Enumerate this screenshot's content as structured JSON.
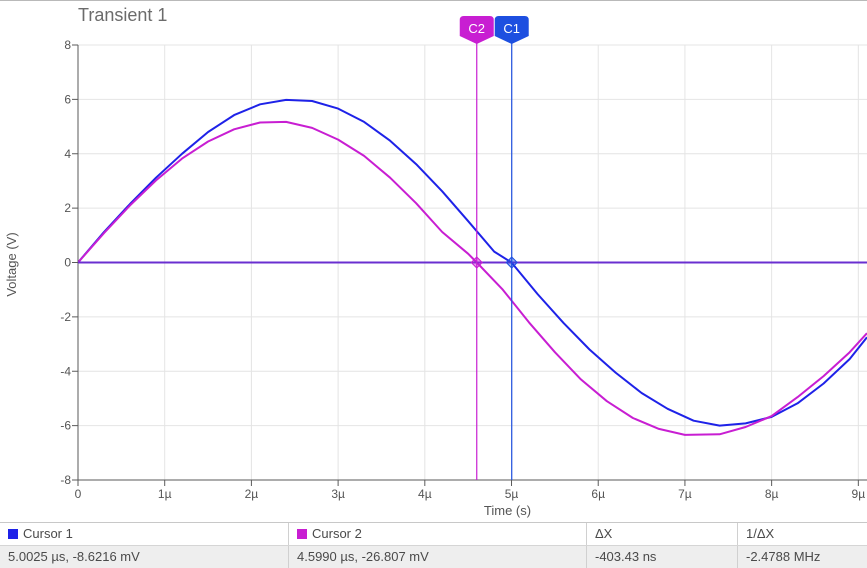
{
  "page": {
    "title": "Transient 1"
  },
  "colors": {
    "series1": "#1e22e8",
    "series2": "#c81ed2",
    "zero_line": "#6a2fd0",
    "grid": "#e4e4e4",
    "axis": "#5a5a5a",
    "cursor_c1_fill": "#1d4fe0",
    "cursor_c2_fill": "#c81ed2"
  },
  "chart_data": {
    "type": "line",
    "xlabel": "Time (s)",
    "ylabel": "Voltage (V)",
    "xlim": [
      0,
      9.1
    ],
    "ylim": [
      -8,
      8
    ],
    "x_unit_note": "microseconds",
    "x_ticks": [
      0,
      1,
      2,
      3,
      4,
      5,
      6,
      7,
      8,
      9
    ],
    "x_tick_labels": [
      "0",
      "1µ",
      "2µ",
      "3µ",
      "4µ",
      "5µ",
      "6µ",
      "7µ",
      "8µ",
      "9µ"
    ],
    "y_ticks": [
      -8,
      -6,
      -4,
      -2,
      0,
      2,
      4,
      6,
      8
    ],
    "y_tick_labels": [
      "-8",
      "-6",
      "-4",
      "-2",
      "0",
      "2",
      "4",
      "6",
      "8"
    ],
    "grid": true,
    "series": [
      {
        "color": "#1e22e8",
        "x": [
          0,
          0.3,
          0.6,
          0.9,
          1.2,
          1.5,
          1.8,
          2.1,
          2.4,
          2.7,
          3.0,
          3.3,
          3.6,
          3.9,
          4.2,
          4.5,
          4.8,
          5.0,
          5.3,
          5.6,
          5.9,
          6.2,
          6.5,
          6.8,
          7.1,
          7.4,
          7.7,
          8.0,
          8.3,
          8.6,
          8.9,
          9.1
        ],
        "y": [
          0,
          1.12,
          2.15,
          3.12,
          4.0,
          4.8,
          5.42,
          5.82,
          5.98,
          5.94,
          5.66,
          5.17,
          4.48,
          3.62,
          2.62,
          1.52,
          0.4,
          0,
          -1.16,
          -2.22,
          -3.2,
          -4.05,
          -4.8,
          -5.38,
          -5.82,
          -6.0,
          -5.92,
          -5.68,
          -5.18,
          -4.45,
          -3.55,
          -2.75
        ]
      },
      {
        "color": "#c81ed2",
        "x": [
          0,
          0.3,
          0.6,
          0.9,
          1.2,
          1.5,
          1.8,
          2.1,
          2.4,
          2.7,
          3.0,
          3.3,
          3.6,
          3.9,
          4.2,
          4.5,
          4.6,
          4.9,
          5.2,
          5.5,
          5.8,
          6.1,
          6.4,
          6.7,
          7.0,
          7.4,
          7.7,
          8.0,
          8.3,
          8.6,
          8.9,
          9.1
        ],
        "y": [
          0,
          1.08,
          2.1,
          3.02,
          3.82,
          4.45,
          4.9,
          5.15,
          5.17,
          4.95,
          4.52,
          3.92,
          3.12,
          2.18,
          1.12,
          0.32,
          0,
          -1.0,
          -2.2,
          -3.3,
          -4.3,
          -5.1,
          -5.72,
          -6.12,
          -6.34,
          -6.32,
          -6.05,
          -5.65,
          -4.95,
          -4.18,
          -3.3,
          -2.6
        ]
      },
      {
        "color": "#6a2fd0",
        "x": [
          0,
          9.1
        ],
        "y": [
          0,
          0
        ]
      }
    ],
    "cursors": [
      {
        "label": "C2",
        "x": 4.599,
        "y": 0,
        "color": "#c81ed2"
      },
      {
        "label": "C1",
        "x": 5.0025,
        "y": 0,
        "color": "#1d4fe0"
      }
    ]
  },
  "cursor_table": {
    "headers": [
      "Cursor 1",
      "Cursor 2",
      "ΔX",
      "1/ΔX"
    ],
    "values": [
      "5.0025 µs, -8.6216 mV",
      "4.5990 µs, -26.807 mV",
      "-403.43 ns",
      "-2.4788 MHz"
    ]
  }
}
